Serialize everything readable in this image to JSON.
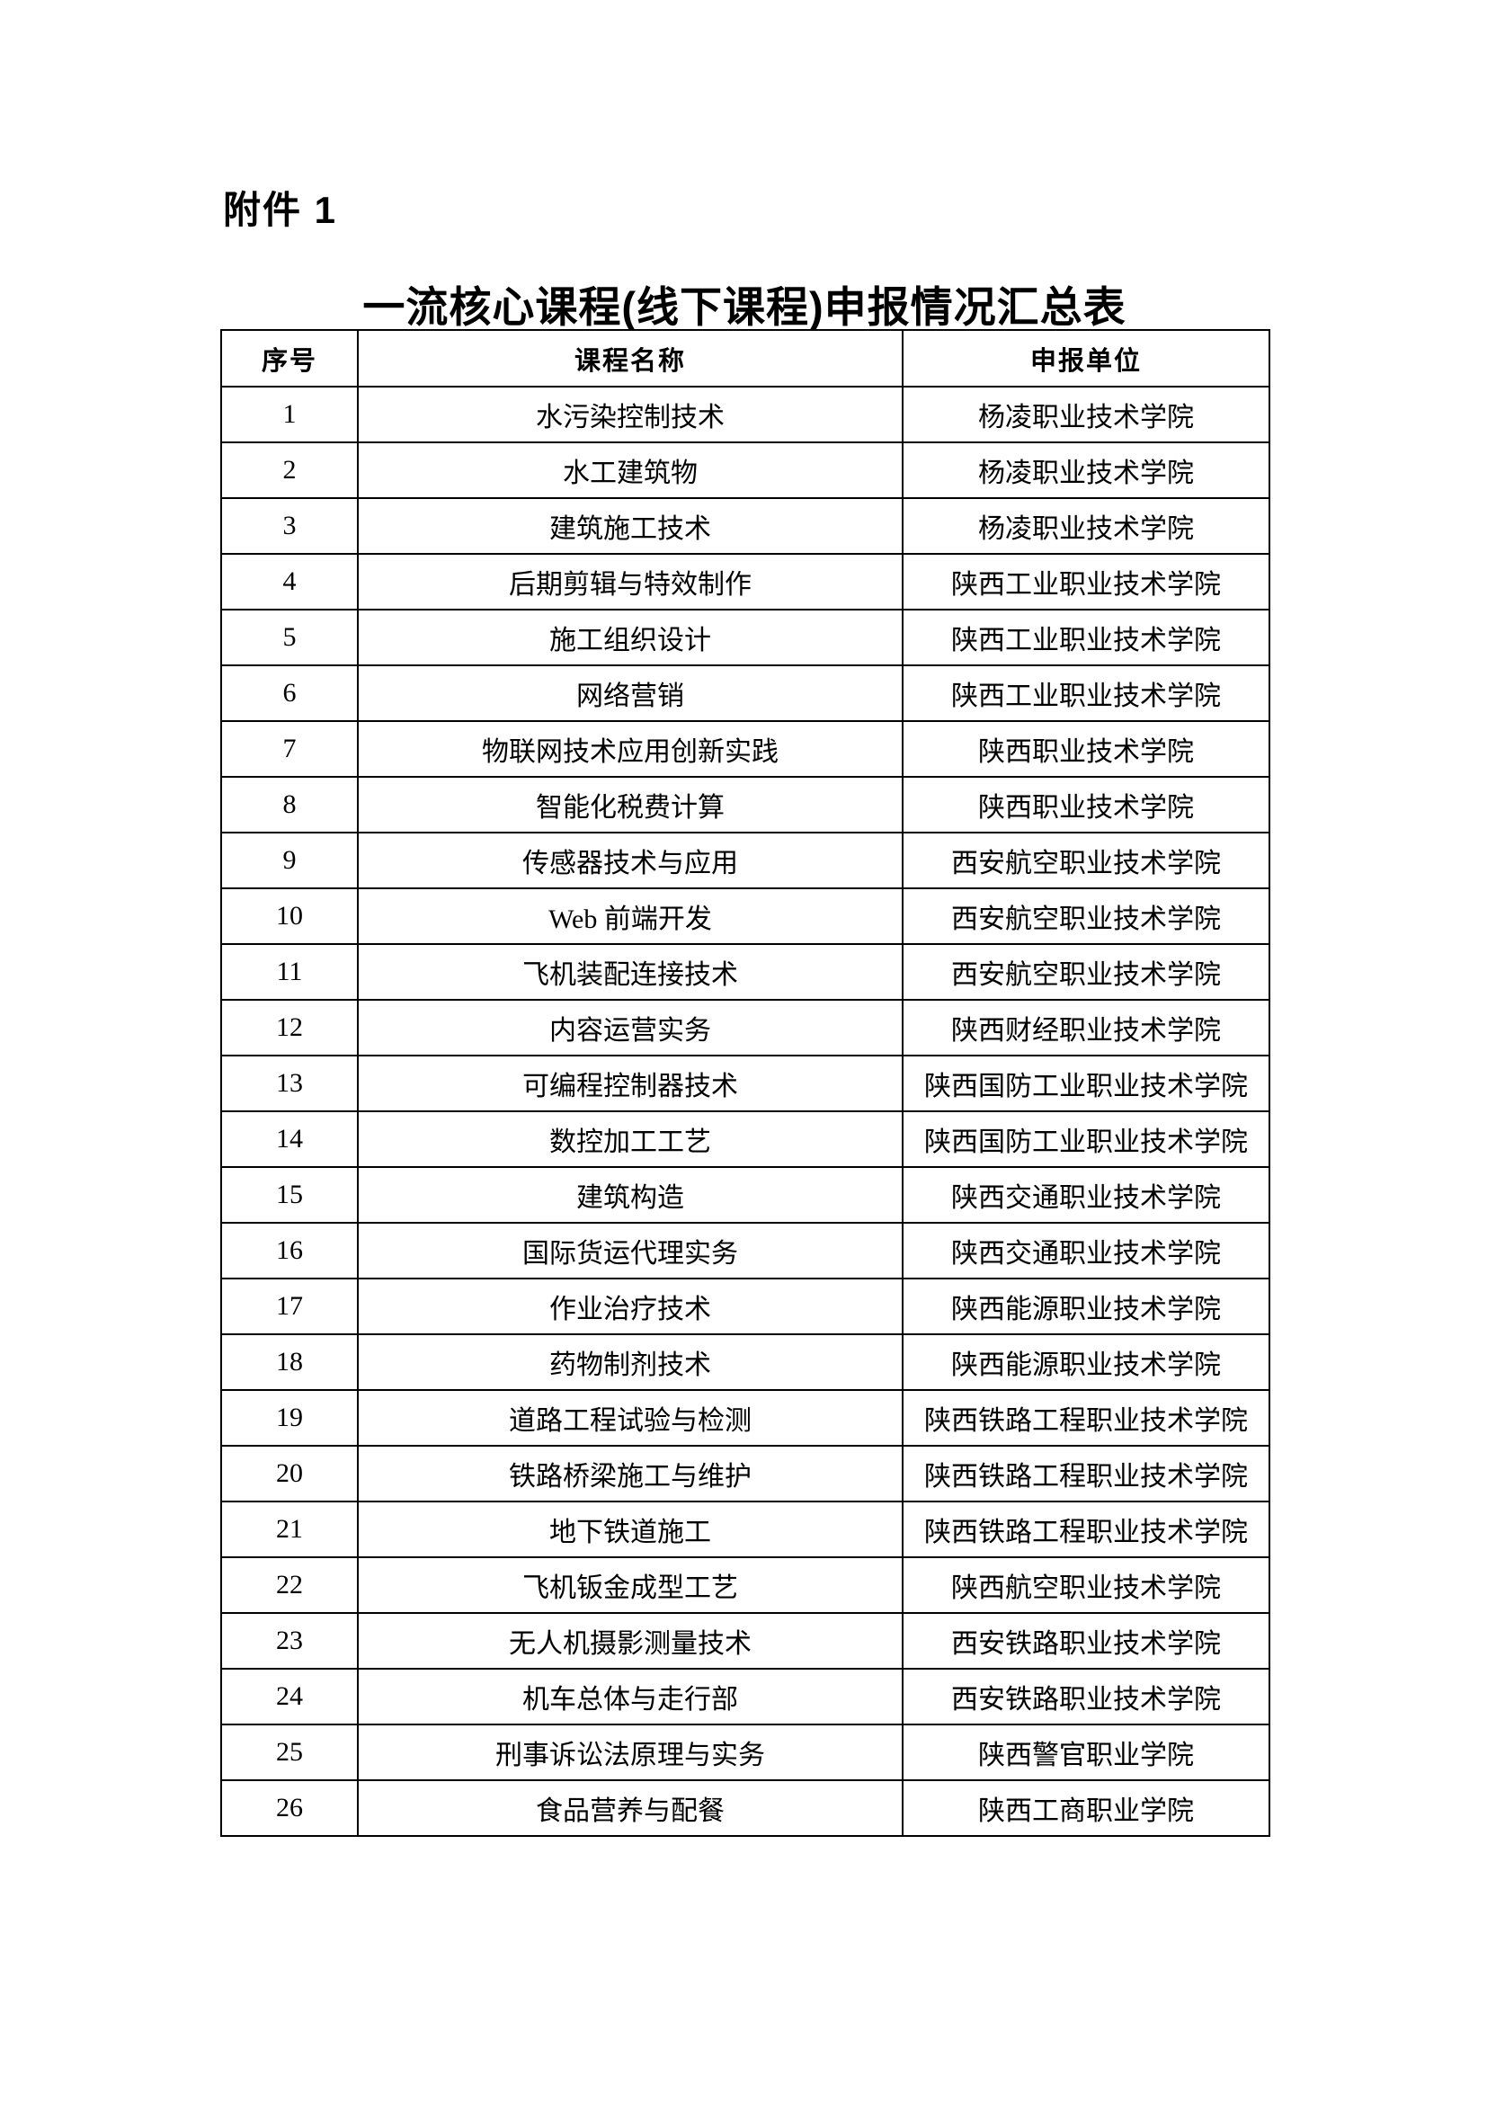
{
  "doc": {
    "attachment_label": "附件 1",
    "title": "一流核心课程(线下课程)申报情况汇总表"
  },
  "table": {
    "headers": [
      "序号",
      "课程名称",
      "申报单位"
    ],
    "rows": [
      {
        "no": "1",
        "course": "水污染控制技术",
        "unit": "杨凌职业技术学院"
      },
      {
        "no": "2",
        "course": "水工建筑物",
        "unit": "杨凌职业技术学院"
      },
      {
        "no": "3",
        "course": "建筑施工技术",
        "unit": "杨凌职业技术学院"
      },
      {
        "no": "4",
        "course": "后期剪辑与特效制作",
        "unit": "陕西工业职业技术学院"
      },
      {
        "no": "5",
        "course": "施工组织设计",
        "unit": "陕西工业职业技术学院"
      },
      {
        "no": "6",
        "course": "网络营销",
        "unit": "陕西工业职业技术学院"
      },
      {
        "no": "7",
        "course": "物联网技术应用创新实践",
        "unit": "陕西职业技术学院"
      },
      {
        "no": "8",
        "course": "智能化税费计算",
        "unit": "陕西职业技术学院"
      },
      {
        "no": "9",
        "course": "传感器技术与应用",
        "unit": "西安航空职业技术学院"
      },
      {
        "no": "10",
        "course": "Web 前端开发",
        "unit": "西安航空职业技术学院"
      },
      {
        "no": "11",
        "course": "飞机装配连接技术",
        "unit": "西安航空职业技术学院"
      },
      {
        "no": "12",
        "course": "内容运营实务",
        "unit": "陕西财经职业技术学院"
      },
      {
        "no": "13",
        "course": "可编程控制器技术",
        "unit": "陕西国防工业职业技术学院"
      },
      {
        "no": "14",
        "course": "数控加工工艺",
        "unit": "陕西国防工业职业技术学院"
      },
      {
        "no": "15",
        "course": "建筑构造",
        "unit": "陕西交通职业技术学院"
      },
      {
        "no": "16",
        "course": "国际货运代理实务",
        "unit": "陕西交通职业技术学院"
      },
      {
        "no": "17",
        "course": "作业治疗技术",
        "unit": "陕西能源职业技术学院"
      },
      {
        "no": "18",
        "course": "药物制剂技术",
        "unit": "陕西能源职业技术学院"
      },
      {
        "no": "19",
        "course": "道路工程试验与检测",
        "unit": "陕西铁路工程职业技术学院"
      },
      {
        "no": "20",
        "course": "铁路桥梁施工与维护",
        "unit": "陕西铁路工程职业技术学院"
      },
      {
        "no": "21",
        "course": "地下铁道施工",
        "unit": "陕西铁路工程职业技术学院"
      },
      {
        "no": "22",
        "course": "飞机钣金成型工艺",
        "unit": "陕西航空职业技术学院"
      },
      {
        "no": "23",
        "course": "无人机摄影测量技术",
        "unit": "西安铁路职业技术学院"
      },
      {
        "no": "24",
        "course": "机车总体与走行部",
        "unit": "西安铁路职业技术学院"
      },
      {
        "no": "25",
        "course": "刑事诉讼法原理与实务",
        "unit": "陕西警官职业学院"
      },
      {
        "no": "26",
        "course": "食品营养与配餐",
        "unit": "陕西工商职业学院"
      }
    ]
  }
}
